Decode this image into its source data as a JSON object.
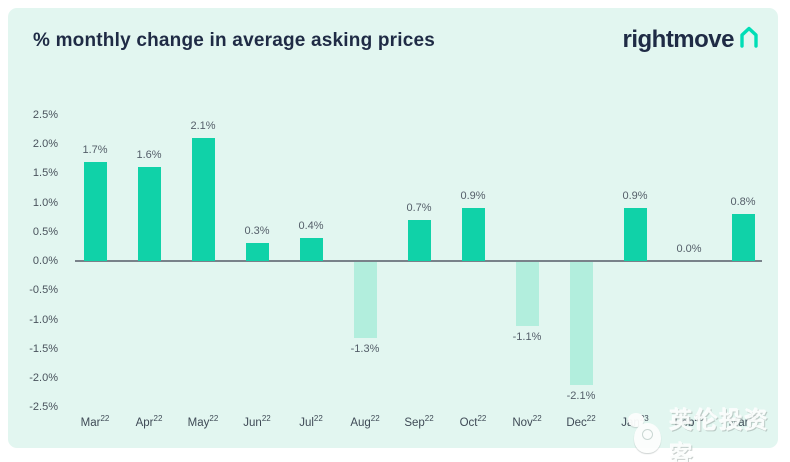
{
  "header": {
    "title": "% monthly change in average asking prices",
    "brand": "rightmove",
    "brand_icon": "house-icon"
  },
  "chart_data": {
    "type": "bar",
    "title": "% monthly change in average asking prices",
    "categories": [
      {
        "label": "Mar",
        "sup": "22"
      },
      {
        "label": "Apr",
        "sup": "22"
      },
      {
        "label": "May",
        "sup": "22"
      },
      {
        "label": "Jun",
        "sup": "22"
      },
      {
        "label": "Jul",
        "sup": "22"
      },
      {
        "label": "Aug",
        "sup": "22"
      },
      {
        "label": "Sep",
        "sup": "22"
      },
      {
        "label": "Oct",
        "sup": "22"
      },
      {
        "label": "Nov",
        "sup": "22"
      },
      {
        "label": "Dec",
        "sup": "22"
      },
      {
        "label": "Jan",
        "sup": "23"
      },
      {
        "label": "Feb",
        "sup": "23"
      },
      {
        "label": "Mar",
        "sup": "23"
      }
    ],
    "values": [
      1.7,
      1.6,
      2.1,
      0.3,
      0.4,
      -1.3,
      0.7,
      0.9,
      -1.1,
      -2.1,
      0.9,
      0.0,
      0.8
    ],
    "value_labels": [
      "1.7%",
      "1.6%",
      "2.1%",
      "0.3%",
      "0.4%",
      "-1.3%",
      "0.7%",
      "0.9%",
      "-1.1%",
      "-2.1%",
      "0.9%",
      "0.0%",
      "0.8%"
    ],
    "yticks": [
      "2.5%",
      "2.0%",
      "1.5%",
      "1.0%",
      "0.5%",
      "0.0%",
      "-0.5%",
      "-1.0%",
      "-1.5%",
      "-2.0%",
      "-2.5%"
    ],
    "ylim": [
      -2.5,
      2.5
    ],
    "grid": false,
    "legend": "none",
    "xlabel": "",
    "ylabel": ""
  },
  "colors": {
    "positive_bar": "#10d2a8",
    "negative_bar": "#b2eedd",
    "panel_bg": "#e2f6f0",
    "title": "#1f2b45",
    "axis_text": "#49525c",
    "axis_line": "#79828a",
    "brand_teal": "#00deb6"
  },
  "watermark": {
    "text": "英伦投资客",
    "icon": "mascot-icon"
  }
}
